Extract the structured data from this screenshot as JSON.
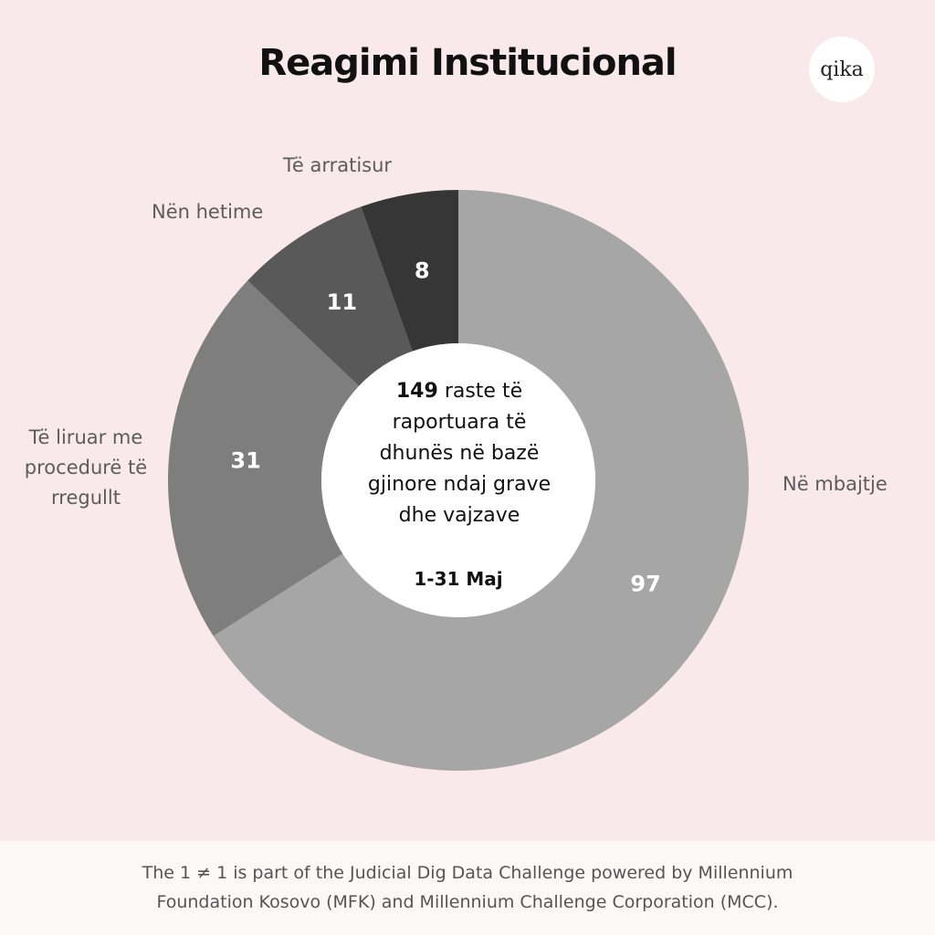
{
  "header": {
    "title": "Reagimi Institucional",
    "logo_text": "qika"
  },
  "center": {
    "count": "149",
    "text": "raste të raportuara të dhunës në bazë gjinore ndaj grave dhe vajzave",
    "date": "1-31 Maj"
  },
  "chart_data": {
    "type": "pie",
    "categories": [
      "Në mbajtje",
      "Të liruar me procedurë të rregullt",
      "Nën hetime",
      "Të arratisur"
    ],
    "values": [
      97,
      31,
      11,
      8
    ],
    "colors": [
      "#a6a6a6",
      "#7e7e7e",
      "#595959",
      "#363636"
    ],
    "donut": true,
    "legend": "labels beside slices"
  },
  "footer": {
    "text": "The 1 ≠ 1 is part of the Judicial Dig Data Challenge powered by Millennium Foundation Kosovo (MFK) and Millennium Challenge Corporation (MCC)."
  }
}
